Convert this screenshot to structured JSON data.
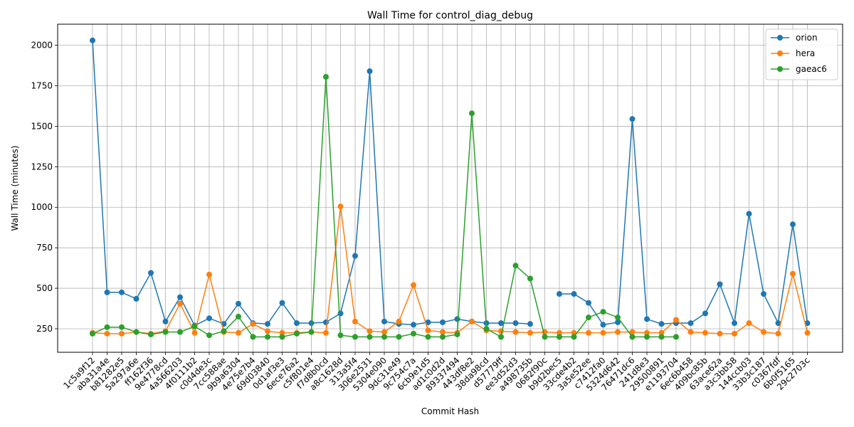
{
  "chart_data": {
    "type": "line",
    "title": "Wall Time for control_diag_debug",
    "xlabel": "Commit Hash",
    "ylabel": "Wall Time (minutes)",
    "ylim": [
      105,
      2130
    ],
    "yticks": [
      250,
      500,
      750,
      1000,
      1250,
      1500,
      1750,
      2000
    ],
    "grid": true,
    "legend_position": "top-right",
    "categories": [
      "1c5a9f12",
      "aba31a4e",
      "b81282e5",
      "5a297a6e",
      "ff162f36",
      "9e4778cd",
      "4a566203",
      "4f0111b2",
      "c0d4de3c",
      "7cc588ae",
      "9b9a6304",
      "4e75e7b4",
      "69d03840",
      "0d1af3e3",
      "6ece76a2",
      "c5f801e4",
      "f7d8b0cd",
      "a8c1628d",
      "313a5f4",
      "306e2531",
      "5304e090",
      "9dc31e49",
      "9c754c7a",
      "6cb9e1d5",
      "ad1c0d2d",
      "89337494",
      "443df8e2",
      "38da98cd",
      "d57779ff",
      "ee3d52d3",
      "a498735b",
      "0682f90c",
      "b9d2bec5",
      "33cde4b2",
      "3a5e52ee",
      "c7412fa0",
      "5324d642",
      "76471dc6",
      "241d8e3",
      "29500891",
      "e1193704",
      "6ec6b458",
      "409bc85b",
      "63ace62a",
      "a3c3bb58",
      "144ccb03",
      "33b3c187",
      "c0367fdf",
      "6b0f5165",
      "29c2703c"
    ],
    "series": [
      {
        "name": "orion",
        "color": "#1f77b4",
        "values": [
          2030,
          475,
          475,
          435,
          595,
          295,
          445,
          270,
          315,
          280,
          405,
          285,
          280,
          410,
          285,
          285,
          290,
          345,
          700,
          1840,
          295,
          280,
          275,
          290,
          290,
          310,
          295,
          285,
          285,
          285,
          280,
          null,
          465,
          465,
          410,
          275,
          290,
          1545,
          310,
          280,
          285,
          285,
          345,
          525,
          285,
          960,
          465,
          285,
          895,
          285
        ]
      },
      {
        "name": "hera",
        "color": "#ff7f0e",
        "values": [
          225,
          220,
          220,
          230,
          220,
          235,
          405,
          225,
          585,
          230,
          225,
          280,
          235,
          225,
          225,
          230,
          225,
          1005,
          295,
          235,
          230,
          295,
          520,
          240,
          230,
          225,
          295,
          240,
          235,
          230,
          225,
          230,
          225,
          225,
          225,
          225,
          230,
          230,
          225,
          225,
          305,
          230,
          225,
          220,
          220,
          285,
          230,
          220,
          590,
          225
        ]
      },
      {
        "name": "gaeac6",
        "color": "#2ca02c",
        "values": [
          220,
          260,
          260,
          230,
          215,
          230,
          230,
          265,
          210,
          235,
          325,
          200,
          200,
          200,
          220,
          230,
          1805,
          210,
          200,
          200,
          200,
          200,
          220,
          200,
          200,
          215,
          1580,
          250,
          200,
          640,
          560,
          200,
          200,
          200,
          320,
          355,
          320,
          200,
          200,
          200,
          200,
          null,
          null,
          null,
          null,
          null,
          null,
          null,
          null,
          null
        ]
      }
    ]
  }
}
